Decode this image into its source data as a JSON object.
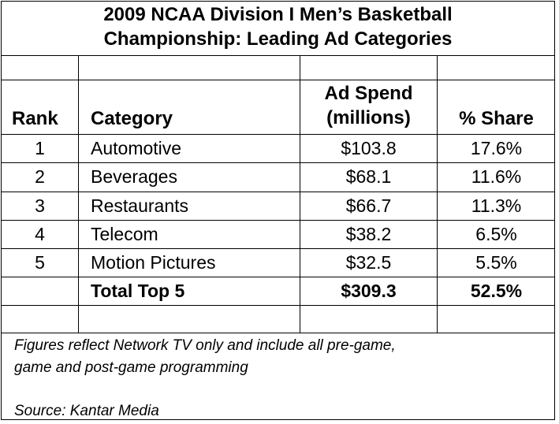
{
  "title": {
    "line1": "2009 NCAA Division I Men’s Basketball",
    "line2": "Championship: Leading Ad Categories"
  },
  "headers": {
    "rank": "Rank",
    "category": "Category",
    "spend_line1": "Ad Spend",
    "spend_line2": "(millions)",
    "share": "% Share"
  },
  "rows": [
    {
      "rank": "1",
      "category": "Automotive",
      "spend": "$103.8",
      "share": "17.6%"
    },
    {
      "rank": "2",
      "category": "Beverages",
      "spend": "$68.1",
      "share": "11.6%"
    },
    {
      "rank": "3",
      "category": "Restaurants",
      "spend": "$66.7",
      "share": "11.3%"
    },
    {
      "rank": "4",
      "category": "Telecom",
      "spend": "$38.2",
      "share": "6.5%"
    },
    {
      "rank": "5",
      "category": "Motion Pictures",
      "spend": "$32.5",
      "share": "5.5%"
    }
  ],
  "total": {
    "label": "Total Top 5",
    "spend": "$309.3",
    "share": "52.5%"
  },
  "notes": {
    "line1": "Figures reflect Network TV only and include all pre-game,",
    "line2": "game and post-game programming",
    "source": "Source: Kantar Media"
  }
}
